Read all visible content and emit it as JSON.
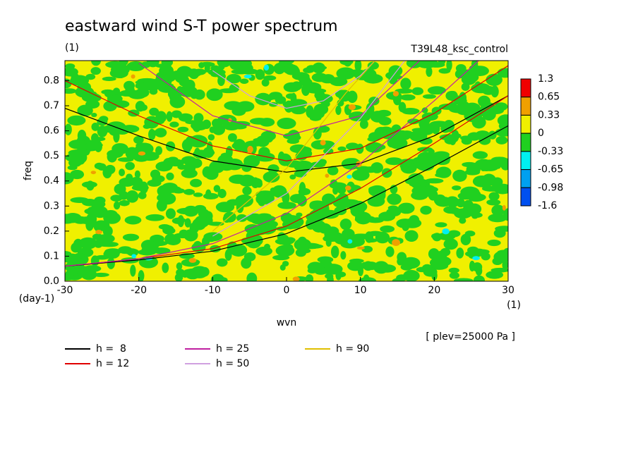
{
  "chart_data": {
    "type": "contour",
    "title": "eastward wind S-T power spectrum",
    "subtitle": "(1)",
    "run_label": "T39L48_ksc_control",
    "x_label": "wvn",
    "x_unit": "(1)",
    "y_label": "freq",
    "y_unit": "(day-1)",
    "level_note": "[ plev=25000 Pa ]",
    "xlim": [
      -30,
      30
    ],
    "xticks": [
      -30,
      -20,
      -10,
      {
        "value": 0,
        "label": "0"
      },
      10,
      20,
      30
    ],
    "ylim": [
      0,
      0.88
    ],
    "yticks": [
      {
        "value": 0,
        "label": "0.0"
      },
      0.1,
      0.2,
      0.3,
      0.4,
      0.5,
      0.6,
      0.7,
      0.8
    ],
    "colorbar": {
      "levels": [
        1.3,
        0.65,
        0.33,
        0,
        -0.33,
        -0.65,
        -0.98,
        -1.6
      ],
      "colors": [
        "#f00000",
        "#f0a000",
        "#f0f000",
        "#20d020",
        "#00f0f0",
        "#00a0f0",
        "#0050f0"
      ]
    },
    "series": [
      {
        "name": "h =  8",
        "color": "#000000",
        "curves": [
          {
            "x": [
              -30,
              -20,
              -10,
              0,
              10,
              20,
              30
            ],
            "y": [
              0.69,
              0.58,
              0.48,
              0.435,
              0.47,
              0.58,
              0.74
            ]
          },
          {
            "x": [
              -30,
              -20,
              -10,
              0,
              10,
              20,
              30
            ],
            "y": [
              0.06,
              0.085,
              0.12,
              0.19,
              0.31,
              0.46,
              0.62
            ]
          }
        ]
      },
      {
        "name": "h = 12",
        "color": "#e00000",
        "curves": [
          {
            "x": [
              -30,
              -20,
              -10,
              0,
              10,
              20,
              30
            ],
            "y": [
              0.8,
              0.66,
              0.54,
              0.48,
              0.53,
              0.67,
              0.86
            ]
          },
          {
            "x": [
              -30,
              -20,
              -10,
              0,
              10,
              20,
              30
            ],
            "y": [
              0.06,
              0.09,
              0.13,
              0.22,
              0.37,
              0.55,
              0.74
            ]
          }
        ]
      },
      {
        "name": "h = 25",
        "color": "#c020a0",
        "curves": [
          {
            "x": [
              -20,
              -10,
              0,
              10,
              18
            ],
            "y": [
              0.87,
              0.66,
              0.58,
              0.66,
              0.88
            ]
          },
          {
            "x": [
              -30,
              -20,
              -10,
              0,
              10,
              20,
              26
            ],
            "y": [
              0.06,
              0.09,
              0.15,
              0.27,
              0.47,
              0.72,
              0.88
            ]
          }
        ]
      },
      {
        "name": "h = 50",
        "color": "#d0a0e0",
        "curves": [
          {
            "x": [
              -10,
              -5,
              0,
              5,
              10,
              12
            ],
            "y": [
              0.84,
              0.74,
              0.69,
              0.72,
              0.82,
              0.88
            ]
          },
          {
            "x": [
              -10,
              0,
              10,
              16
            ],
            "y": [
              0.18,
              0.35,
              0.65,
              0.88
            ]
          }
        ]
      },
      {
        "name": "h = 90",
        "color": "#e0c000",
        "curves": [
          {
            "x": [
              -10,
              0,
              8,
              12
            ],
            "y": [
              0.2,
              0.45,
              0.75,
              0.88
            ]
          }
        ]
      }
    ]
  }
}
